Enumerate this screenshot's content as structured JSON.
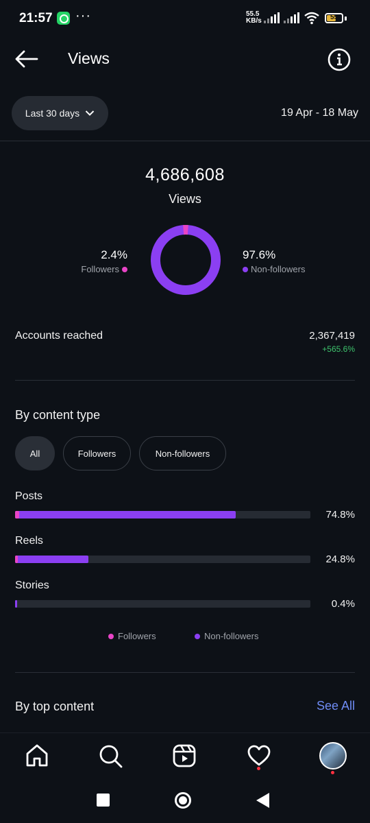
{
  "status_bar": {
    "time": "21:57",
    "dots": "···",
    "net_speed_value": "55.5",
    "net_speed_unit": "KB/s",
    "battery": "55"
  },
  "header": {
    "title": "Views",
    "back_icon": "arrow-left-icon",
    "info_icon": "info-icon"
  },
  "filters": {
    "range_label": "Last 30 days",
    "date_range": "19 Apr - 18 May"
  },
  "summary": {
    "total_value": "4,686,608",
    "total_label": "Views",
    "followers_pct": "2.4%",
    "followers_label": "Followers",
    "nonfollowers_pct": "97.6%",
    "nonfollowers_label": "Non-followers",
    "followers_fraction": 0.024
  },
  "accounts_reached": {
    "label": "Accounts reached",
    "value": "2,367,419",
    "change": "+565.6%"
  },
  "content_type": {
    "title": "By content type",
    "chips": [
      "All",
      "Followers",
      "Non-followers"
    ],
    "selected_chip": "All",
    "rows": [
      {
        "label": "Posts",
        "pct": "74.8%",
        "fraction": 0.748
      },
      {
        "label": "Reels",
        "pct": "24.8%",
        "fraction": 0.248
      },
      {
        "label": "Stories",
        "pct": "0.4%",
        "fraction": 0.004
      }
    ],
    "legend_followers": "Followers",
    "legend_nonfollowers": "Non-followers"
  },
  "top_content": {
    "title": "By top content",
    "see_all": "See All"
  },
  "colors": {
    "followers": "#e844c6",
    "nonfollowers": "#8b3ff2",
    "positive": "#3ec46d",
    "link": "#6f8cf5"
  },
  "bottom_nav": [
    "home-icon",
    "search-icon",
    "reels-icon",
    "heart-icon",
    "profile-avatar"
  ]
}
